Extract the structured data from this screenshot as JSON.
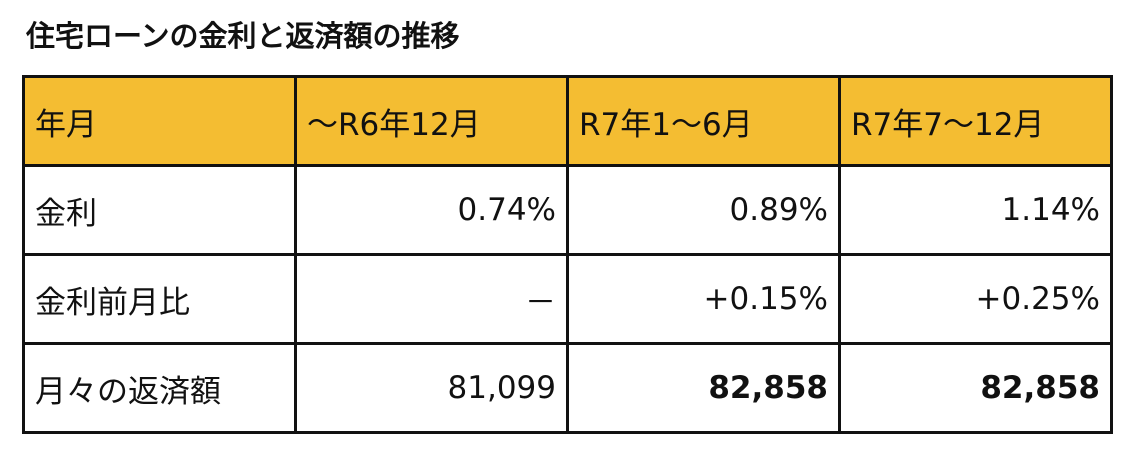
{
  "header": {
    "title": "住宅ローンの金利と返済額の推移"
  },
  "table": {
    "columns": [
      "年月",
      "～R6年12月",
      "R7年1～6月",
      "R7年7～12月"
    ],
    "rows": [
      [
        "金利",
        "0.74%",
        "0.89%",
        "1.14%"
      ],
      [
        "金利前月比",
        "－",
        "+0.15%",
        "+0.25%"
      ],
      [
        "月々の返済額",
        "81,099",
        "82,858",
        "82,858"
      ]
    ]
  }
}
